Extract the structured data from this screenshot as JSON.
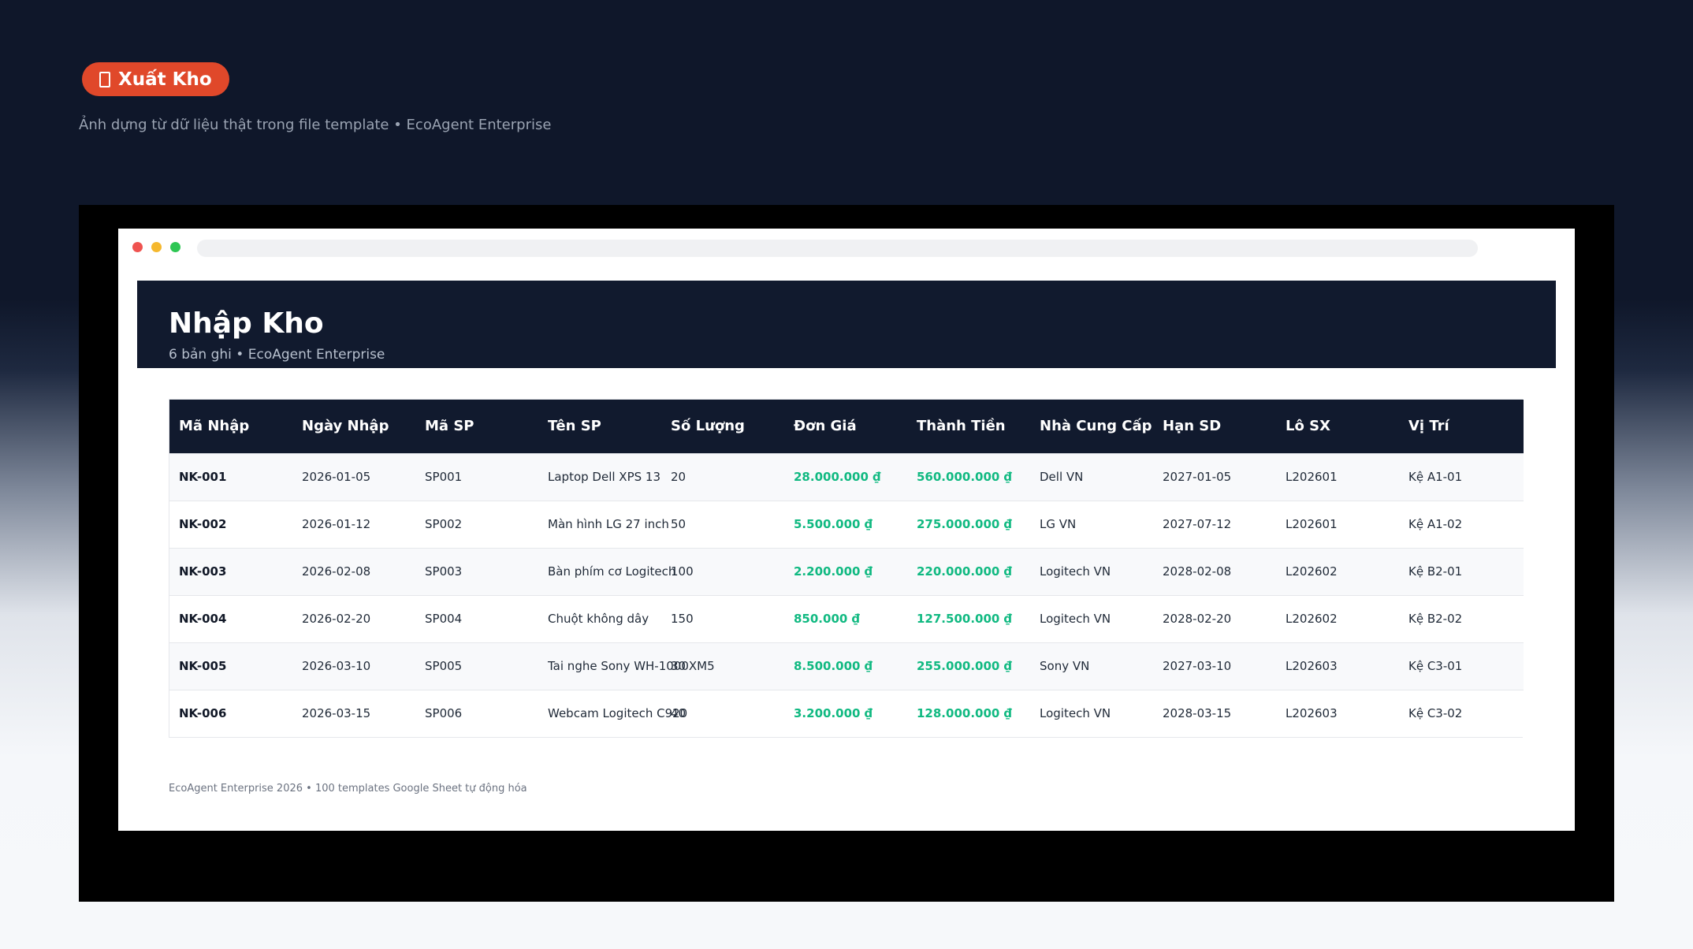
{
  "top_button": {
    "icon": "box-icon",
    "label": "Xuất Kho",
    "color": "#e0482a"
  },
  "subtitle": "Ảnh dựng từ dữ liệu thật trong file template • EcoAgent Enterprise",
  "window": {
    "title": "Nhập Kho",
    "subtitle": "6 bản ghi • EcoAgent Enterprise"
  },
  "table": {
    "headers": [
      "Mã Nhập",
      "Ngày Nhập",
      "Mã SP",
      "Tên SP",
      "Số Lượng",
      "Đơn Giá",
      "Thành Tiền",
      "Nhà Cung Cấp",
      "Hạn SD",
      "Lô SX",
      "Vị Trí"
    ],
    "rows": [
      [
        "NK-001",
        "2026-01-05",
        "SP001",
        "Laptop Dell XPS 13",
        "20",
        "28.000.000 ₫",
        "560.000.000 ₫",
        "Dell VN",
        "2027-01-05",
        "L202601",
        "Kệ A1-01"
      ],
      [
        "NK-002",
        "2026-01-12",
        "SP002",
        "Màn hình LG 27 inch",
        "50",
        "5.500.000 ₫",
        "275.000.000 ₫",
        "LG VN",
        "2027-07-12",
        "L202601",
        "Kệ A1-02"
      ],
      [
        "NK-003",
        "2026-02-08",
        "SP003",
        "Bàn phím cơ Logitech",
        "100",
        "2.200.000 ₫",
        "220.000.000 ₫",
        "Logitech VN",
        "2028-02-08",
        "L202602",
        "Kệ B2-01"
      ],
      [
        "NK-004",
        "2026-02-20",
        "SP004",
        "Chuột không dây",
        "150",
        "850.000 ₫",
        "127.500.000 ₫",
        "Logitech VN",
        "2028-02-20",
        "L202602",
        "Kệ B2-02"
      ],
      [
        "NK-005",
        "2026-03-10",
        "SP005",
        "Tai nghe Sony WH-1000XM5",
        "30",
        "8.500.000 ₫",
        "255.000.000 ₫",
        "Sony VN",
        "2027-03-10",
        "L202603",
        "Kệ C3-01"
      ],
      [
        "NK-006",
        "2026-03-15",
        "SP006",
        "Webcam Logitech C920",
        "40",
        "3.200.000 ₫",
        "128.000.000 ₫",
        "Logitech VN",
        "2028-03-15",
        "L202603",
        "Kệ C3-02"
      ]
    ]
  },
  "footer": "EcoAgent Enterprise 2026 • 100 templates Google Sheet tự động hóa",
  "colors": {
    "header_bg": "#111a2e",
    "money": "#10b981",
    "accent": "#e0482a"
  }
}
